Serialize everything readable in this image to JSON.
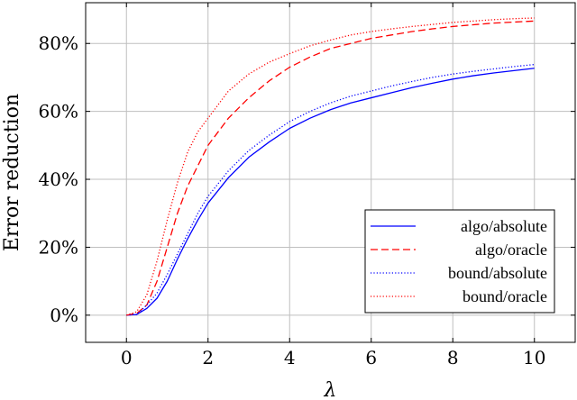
{
  "chart_data": {
    "type": "line",
    "xlabel": "λ",
    "ylabel": "Error reduction",
    "xlim": [
      -1,
      11
    ],
    "ylim": [
      -8,
      92
    ],
    "x_ticks": [
      0,
      2,
      4,
      6,
      8,
      10
    ],
    "x_tick_labels": [
      "0",
      "2",
      "4",
      "6",
      "8",
      "10"
    ],
    "y_ticks": [
      0,
      20,
      40,
      60,
      80
    ],
    "y_tick_labels": [
      "0%",
      "20%",
      "40%",
      "60%",
      "80%"
    ],
    "grid": true,
    "legend_position": "bottom-right",
    "x": [
      0,
      0.25,
      0.5,
      0.75,
      1,
      1.25,
      1.5,
      1.75,
      2,
      2.5,
      3,
      3.5,
      4,
      4.5,
      5,
      5.5,
      6,
      6.5,
      7,
      7.5,
      8,
      8.5,
      9,
      9.5,
      10
    ],
    "series": [
      {
        "name": "algo/absolute",
        "color": "#0000ff",
        "dash": "solid",
        "values": [
          0,
          0.2,
          2,
          5,
          10,
          16.5,
          22.5,
          28,
          33,
          40.5,
          46.5,
          51,
          55,
          58,
          60.5,
          62.5,
          64,
          65.5,
          67,
          68.3,
          69.5,
          70.5,
          71.3,
          72,
          72.7
        ]
      },
      {
        "name": "algo/oracle",
        "color": "#ff0000",
        "dash": "dashed",
        "values": [
          0,
          0.5,
          3,
          10,
          20,
          30,
          38,
          44,
          50,
          58,
          64,
          69,
          73,
          76,
          78.5,
          80,
          81.5,
          82.5,
          83.5,
          84.3,
          85,
          85.5,
          86,
          86.3,
          86.6
        ]
      },
      {
        "name": "bound/absolute",
        "color": "#0000ff",
        "dash": "dotted",
        "values": [
          0,
          0.2,
          3,
          6.5,
          12,
          18,
          24,
          30,
          35,
          42.5,
          48.5,
          53,
          57,
          60,
          62.5,
          64.5,
          66,
          67.5,
          68.8,
          70,
          71,
          71.8,
          72.5,
          73.2,
          73.8
        ]
      },
      {
        "name": "bound/oracle",
        "color": "#ff0000",
        "dash": "dotted",
        "values": [
          0,
          1,
          6,
          16,
          28,
          39,
          48,
          54,
          58,
          66,
          71,
          74.5,
          77,
          79.3,
          81,
          82.5,
          83.5,
          84.3,
          85,
          85.6,
          86.2,
          86.6,
          87,
          87.3,
          87.5
        ]
      }
    ]
  }
}
